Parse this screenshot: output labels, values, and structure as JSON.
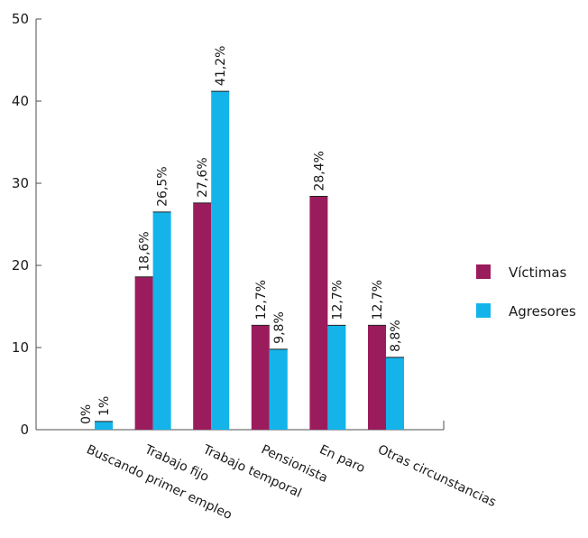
{
  "chart_data": {
    "type": "bar",
    "categories": [
      "Buscando primer empleo",
      "Trabajo fijo",
      "Trabajo temporal",
      "Pensionista",
      "En paro",
      "Otras circunstancias"
    ],
    "series": [
      {
        "name": "Víctimas",
        "color": "#9b1c5c",
        "values": [
          0,
          18.6,
          27.6,
          12.7,
          28.4,
          12.7
        ],
        "labels": [
          "0%",
          "18,6%",
          "27,6%",
          "12,7%",
          "28,4%",
          "12,7%"
        ]
      },
      {
        "name": "Agresores",
        "color": "#14b4eb",
        "values": [
          1,
          26.5,
          41.2,
          9.8,
          12.7,
          8.8
        ],
        "labels": [
          "1%",
          "26,5%",
          "41,2%",
          "9,8%",
          "12,7%",
          "8,8%"
        ]
      }
    ],
    "ylim": [
      0,
      50
    ],
    "yticks": [
      0,
      10,
      20,
      30,
      40,
      50
    ],
    "grid": false,
    "legend_position": "right"
  }
}
